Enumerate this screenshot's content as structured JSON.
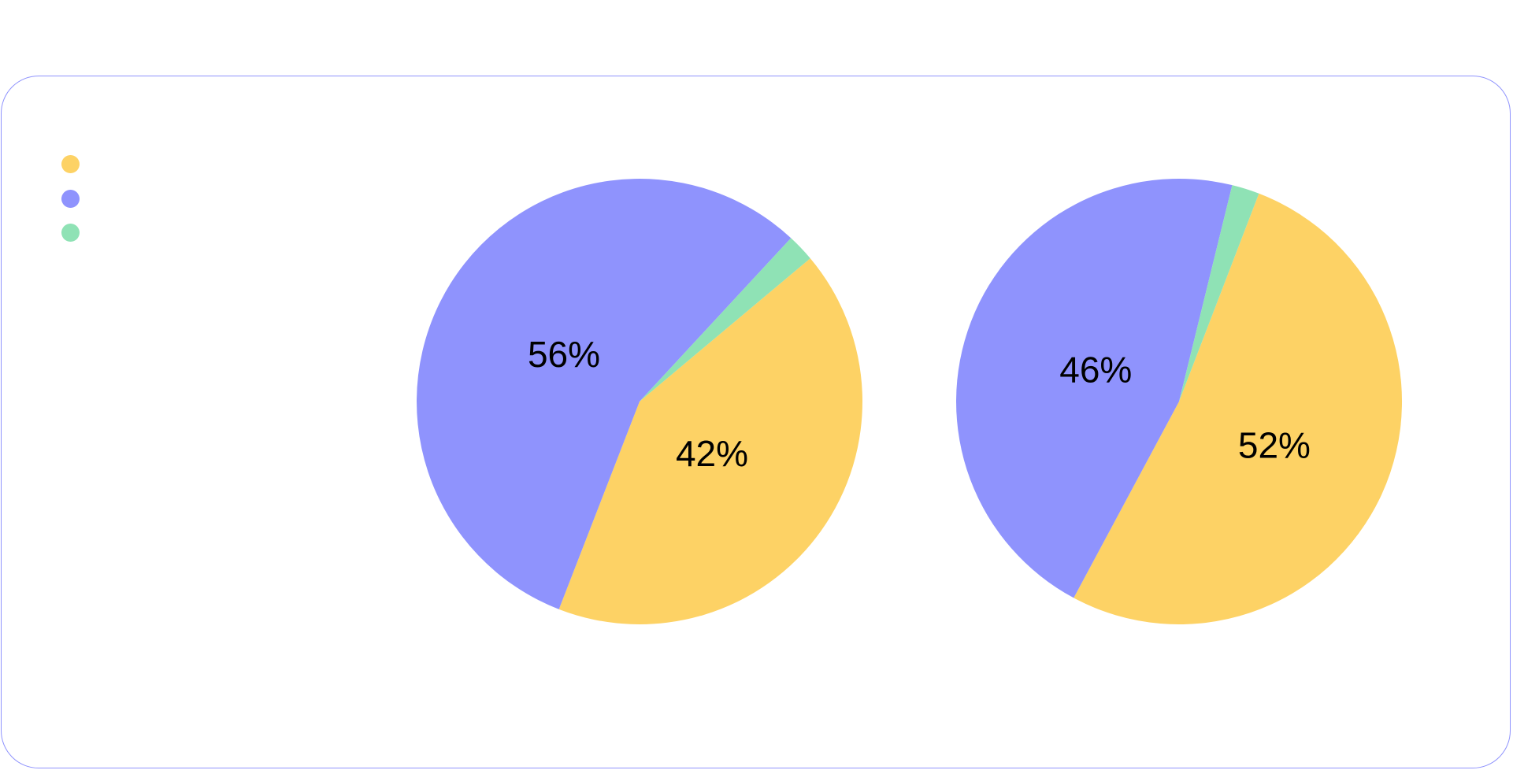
{
  "colors": {
    "card_border": "#8f93fd"
  },
  "chart_data": [
    {
      "type": "pie",
      "title": "",
      "labels": [
        "",
        "",
        ""
      ],
      "colors": [
        "#fdd265",
        "#8f93fd",
        "#8fe2b5"
      ],
      "values": [
        42,
        56,
        2
      ],
      "value_labels": [
        "42%",
        "56%",
        ""
      ],
      "start_angle_deg": -40,
      "legend": "left"
    },
    {
      "type": "pie",
      "title": "",
      "labels": [
        "",
        "",
        ""
      ],
      "colors": [
        "#fdd265",
        "#8f93fd",
        "#8fe2b5"
      ],
      "values": [
        52,
        46,
        2
      ],
      "value_labels": [
        "52%",
        "46%",
        ""
      ],
      "start_angle_deg": -69,
      "legend": "left"
    }
  ],
  "legend": {
    "items": [
      {
        "label": "",
        "color": "#fdd265"
      },
      {
        "label": "",
        "color": "#8f93fd"
      },
      {
        "label": "",
        "color": "#8fe2b5"
      }
    ]
  }
}
